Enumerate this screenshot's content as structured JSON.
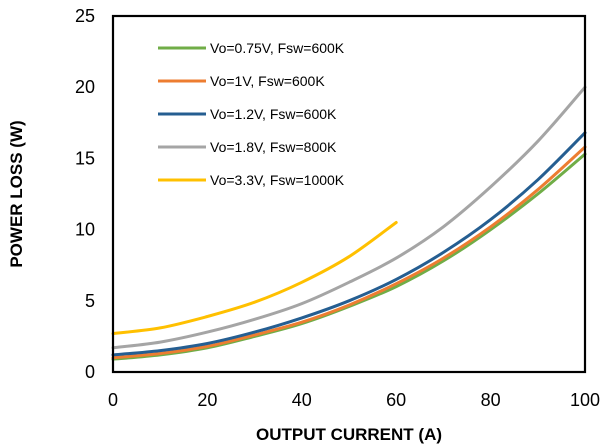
{
  "chart_data": {
    "type": "line",
    "title": "",
    "xlabel": "OUTPUT  CURRENT  (A)",
    "ylabel": "POWER LOSS (W)",
    "xlim": [
      0,
      100
    ],
    "ylim": [
      0,
      25
    ],
    "xticks": [
      "0",
      "20",
      "40",
      "60",
      "80",
      "100"
    ],
    "yticks": [
      "0",
      "5",
      "10",
      "15",
      "20",
      "25"
    ],
    "grid": false,
    "legend_position": "top-left",
    "series": [
      {
        "name": "Vo=0.75V, Fsw=600K",
        "color": "#70ad47",
        "x": [
          0,
          10,
          20,
          30,
          40,
          50,
          60,
          70,
          80,
          90,
          100
        ],
        "y": [
          0.9,
          1.2,
          1.7,
          2.5,
          3.4,
          4.6,
          6.0,
          7.8,
          10.0,
          12.5,
          15.3
        ]
      },
      {
        "name": "Vo=1V, Fsw=600K",
        "color": "#ed7d31",
        "x": [
          0,
          10,
          20,
          30,
          40,
          50,
          60,
          70,
          80,
          90,
          100
        ],
        "y": [
          1.0,
          1.3,
          1.8,
          2.6,
          3.5,
          4.7,
          6.2,
          8.0,
          10.2,
          12.8,
          15.8
        ]
      },
      {
        "name": "Vo=1.2V, Fsw=600K",
        "color": "#255e91",
        "x": [
          0,
          10,
          20,
          30,
          40,
          50,
          60,
          70,
          80,
          90,
          100
        ],
        "y": [
          1.2,
          1.5,
          2.0,
          2.8,
          3.8,
          5.0,
          6.5,
          8.4,
          10.7,
          13.5,
          16.8
        ]
      },
      {
        "name": "Vo=1.8V, Fsw=800K",
        "color": "#a5a5a5",
        "x": [
          0,
          10,
          20,
          30,
          40,
          50,
          60,
          70,
          80,
          90,
          100
        ],
        "y": [
          1.7,
          2.1,
          2.8,
          3.7,
          4.8,
          6.3,
          8.0,
          10.2,
          13.0,
          16.2,
          20.0
        ]
      },
      {
        "name": "Vo=3.3V, Fsw=1000K",
        "color": "#ffc000",
        "x": [
          0,
          10,
          20,
          30,
          40,
          50,
          60
        ],
        "y": [
          2.7,
          3.1,
          3.9,
          4.9,
          6.3,
          8.1,
          10.5
        ]
      }
    ]
  }
}
